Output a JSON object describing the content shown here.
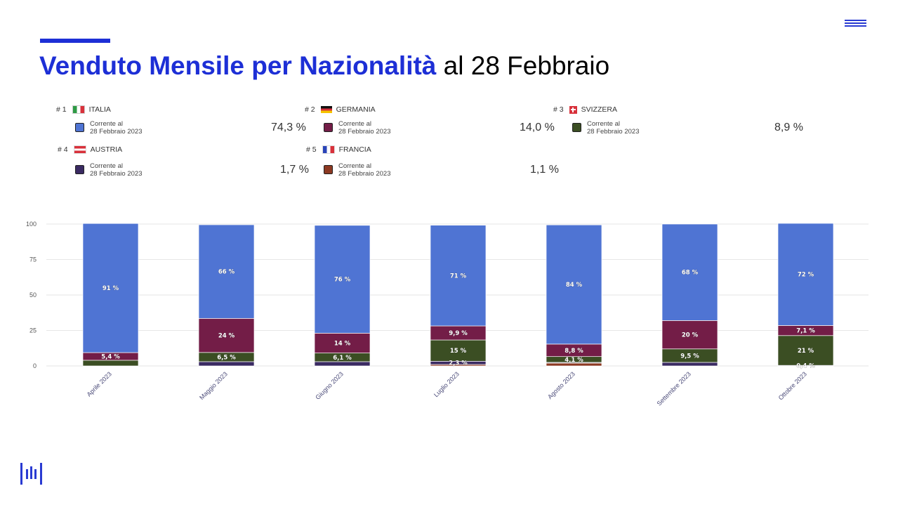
{
  "header": {
    "title_bold": "Venduto Mensile per Nazionalità",
    "title_rest": "al 28 Febbraio"
  },
  "legend": [
    {
      "rank": "# 1",
      "country": "ITALIA",
      "flag": "italy-flag-icon",
      "sub_line1": "Corrente al",
      "sub_line2": "28 Febbraio 2023",
      "share": "74,3 %",
      "color": "#4f74d3"
    },
    {
      "rank": "# 2",
      "country": "GERMANIA",
      "flag": "germany-flag-icon",
      "sub_line1": "Corrente al",
      "sub_line2": "28 Febbraio 2023",
      "share": "14,0 %",
      "color": "#731d47"
    },
    {
      "rank": "# 3",
      "country": "SVIZZERA",
      "flag": "switzerland-flag-icon",
      "sub_line1": "Corrente al",
      "sub_line2": "28 Febbraio 2023",
      "share": "8,9 %",
      "color": "#3b4e23"
    },
    {
      "rank": "# 4",
      "country": "AUSTRIA",
      "flag": "austria-flag-icon",
      "sub_line1": "Corrente al",
      "sub_line2": "28 Febbraio 2023",
      "share": "1,7 %",
      "color": "#3a2a62"
    },
    {
      "rank": "# 5",
      "country": "FRANCIA",
      "flag": "france-flag-icon",
      "sub_line1": "Corrente al",
      "sub_line2": "28 Febbraio 2023",
      "share": "1,1 %",
      "color": "#8c3922"
    }
  ],
  "chart_data": {
    "type": "bar",
    "stacked": true,
    "categories": [
      "Aprile 2023",
      "Maggio 2023",
      "Giugno 2023",
      "Luglio 2023",
      "Agosto 2023",
      "Settembre 2023",
      "Ottobre 2023"
    ],
    "ylim": [
      0,
      100
    ],
    "yticks": [
      "0",
      "25",
      "50",
      "75",
      "100"
    ],
    "grid": true,
    "series": [
      {
        "name": "FRANCIA",
        "color": "#8c3922",
        "values": [
          0,
          0,
          0,
          1,
          2,
          0,
          0
        ],
        "labels": [
          "",
          "",
          "",
          "",
          "",
          "",
          ""
        ]
      },
      {
        "name": "AUSTRIA",
        "color": "#3a2a62",
        "values": [
          0,
          3,
          3,
          2.3,
          0.5,
          2.5,
          0.4
        ],
        "labels": [
          "",
          "",
          "",
          "2,3 %",
          "",
          "",
          "0,4 %"
        ]
      },
      {
        "name": "SVIZZERA",
        "color": "#3b4e23",
        "values": [
          4,
          6.5,
          6.1,
          15,
          4.1,
          9.5,
          21
        ],
        "labels": [
          "",
          "6,5 %",
          "6,1 %",
          "15 %",
          "4,1 %",
          "9,5 %",
          "21 %"
        ]
      },
      {
        "name": "GERMANIA",
        "color": "#731d47",
        "values": [
          5.4,
          24,
          14,
          9.9,
          8.8,
          20,
          7.1
        ],
        "labels": [
          "5,4 %",
          "24 %",
          "14 %",
          "9,9 %",
          "8,8 %",
          "20 %",
          "7,1 %"
        ]
      },
      {
        "name": "ITALIA",
        "color": "#4f74d3",
        "values": [
          91,
          66,
          76,
          71,
          84,
          68,
          72
        ],
        "labels": [
          "91 %",
          "66 %",
          "76 %",
          "71 %",
          "84 %",
          "68 %",
          "72 %"
        ]
      }
    ]
  }
}
